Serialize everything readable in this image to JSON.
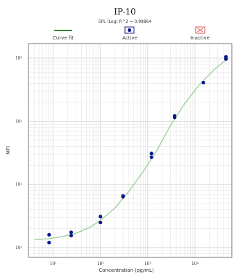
{
  "chart_data": {
    "type": "scatter",
    "title": "IP-10",
    "subtitle": "5PL (Log) R^2 = 0.99864",
    "xlabel": "Concentration (pg/mL)",
    "ylabel": "MFI",
    "x_scale": "log",
    "y_scale": "log",
    "xlim": [
      3,
      60000
    ],
    "ylim": [
      7,
      17000
    ],
    "x_ticks": [
      {
        "value": 10,
        "label": "10¹"
      },
      {
        "value": 100,
        "label": "10²"
      },
      {
        "value": 1000,
        "label": "10³"
      },
      {
        "value": 10000,
        "label": "10⁴"
      }
    ],
    "y_ticks": [
      {
        "value": 10,
        "label": "10¹"
      },
      {
        "value": 100,
        "label": "10²"
      },
      {
        "value": 1000,
        "label": "10³"
      },
      {
        "value": 10000,
        "label": "10⁴"
      }
    ],
    "grid": true,
    "legend_position": "top",
    "legend": [
      {
        "name": "Curve fit",
        "kind": "line",
        "color": "#2e8b2e"
      },
      {
        "name": "Active",
        "kind": "marker",
        "color": "#1a237e"
      },
      {
        "name": "Inactive",
        "kind": "cross",
        "color": "#d9534f"
      }
    ],
    "series": [
      {
        "name": "Active",
        "points": [
          {
            "x": 8.2,
            "y": 16
          },
          {
            "x": 8.2,
            "y": 12
          },
          {
            "x": 24,
            "y": 17.5
          },
          {
            "x": 24,
            "y": 15.5
          },
          {
            "x": 100,
            "y": 31
          },
          {
            "x": 100,
            "y": 25
          },
          {
            "x": 300,
            "y": 66
          },
          {
            "x": 300,
            "y": 64
          },
          {
            "x": 1200,
            "y": 310
          },
          {
            "x": 1200,
            "y": 270
          },
          {
            "x": 3700,
            "y": 1220
          },
          {
            "x": 3700,
            "y": 1150
          },
          {
            "x": 15000,
            "y": 4100
          },
          {
            "x": 45000,
            "y": 10500
          },
          {
            "x": 45000,
            "y": 9700
          }
        ]
      },
      {
        "name": "Curve fit",
        "points": [
          {
            "x": 4,
            "y": 13.3
          },
          {
            "x": 8,
            "y": 13.8
          },
          {
            "x": 16,
            "y": 15.0
          },
          {
            "x": 30,
            "y": 16.8
          },
          {
            "x": 60,
            "y": 21
          },
          {
            "x": 100,
            "y": 27
          },
          {
            "x": 200,
            "y": 42
          },
          {
            "x": 400,
            "y": 78
          },
          {
            "x": 800,
            "y": 160
          },
          {
            "x": 1500,
            "y": 330
          },
          {
            "x": 3000,
            "y": 850
          },
          {
            "x": 6000,
            "y": 1900
          },
          {
            "x": 12000,
            "y": 3700
          },
          {
            "x": 25000,
            "y": 6500
          },
          {
            "x": 50000,
            "y": 10000
          }
        ]
      }
    ]
  },
  "colors": {
    "curve": "#9fd09a",
    "point": "#0a1a8a",
    "grid_major": "#cfcfcf",
    "grid_minor": "#e6e6e6",
    "frame": "#555555"
  }
}
